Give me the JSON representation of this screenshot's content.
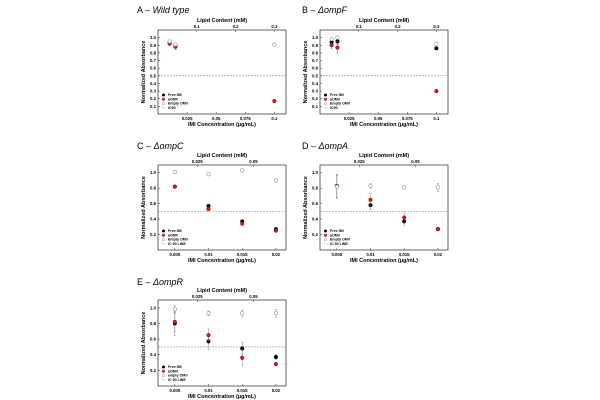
{
  "chart_data": [
    {
      "type": "scatter",
      "title": "A – Wild type",
      "title_prefix": "A – ",
      "title_name": "Wild type",
      "xlabel": "IMI Concentration (µg/mL)",
      "top_xlabel": "Lipid Content (mM)",
      "ylabel": "Normalized Absorbance",
      "xlim": [
        0,
        0.11
      ],
      "ylim": [
        0,
        1.1
      ],
      "x_ticks": [
        0.025,
        0.05,
        0.075,
        0.1
      ],
      "x_tick_labels": [
        "0.025",
        "0.05",
        "0.075",
        "0.1"
      ],
      "top_ticks": [
        0.1,
        0.2,
        0.3
      ],
      "top_tick_labels": [
        "0.1",
        "0.2",
        "0.3"
      ],
      "top_scale": 3,
      "y_ticks": [
        0.1,
        0.2,
        0.3,
        0.4,
        0.5,
        0.6,
        0.7,
        0.8,
        0.9,
        1.0
      ],
      "y_tick_labels": [
        "0.1",
        "0.2",
        "0.3",
        "0.4",
        "0.5",
        "0.6",
        "0.7",
        "0.8",
        "0.9",
        "1.0"
      ],
      "ic50": 0.5,
      "legend": [
        "Free IMI",
        "aOMV",
        "Empty OMV",
        "IC50"
      ],
      "series": [
        {
          "name": "Free IMI",
          "style": "black",
          "points": [
            [
              0.01,
              0.93,
              0.02
            ],
            [
              0.015,
              0.9,
              0.03
            ]
          ]
        },
        {
          "name": "aOMV",
          "style": "red",
          "points": [
            [
              0.01,
              0.92,
              0.02
            ],
            [
              0.015,
              0.88,
              0.04
            ],
            [
              0.1,
              0.17,
              0.01
            ]
          ]
        },
        {
          "name": "Empty OMV",
          "style": "open",
          "points": [
            [
              0.01,
              0.95,
              0.01
            ],
            [
              0.015,
              0.91,
              0.02
            ],
            [
              0.1,
              0.91,
              0.01
            ]
          ]
        }
      ]
    },
    {
      "type": "scatter",
      "title": "B – ΔompF",
      "title_prefix": "B – ",
      "title_name": "ΔompF",
      "xlabel": "IMI Concentration (µg/mL)",
      "top_xlabel": "Lipid Content (mM)",
      "ylabel": "Normalized Absorbance",
      "xlim": [
        0,
        0.11
      ],
      "ylim": [
        0,
        1.1
      ],
      "x_ticks": [
        0.025,
        0.05,
        0.075,
        0.1
      ],
      "x_tick_labels": [
        "0.025",
        "0.05",
        "0.075",
        "0.1"
      ],
      "top_ticks": [
        0.1,
        0.2,
        0.3
      ],
      "top_tick_labels": [
        "0.1",
        "0.2",
        "0.3"
      ],
      "top_scale": 3,
      "y_ticks": [
        0.1,
        0.2,
        0.3,
        0.4,
        0.5,
        0.6,
        0.7,
        0.8,
        0.9,
        1.0
      ],
      "y_tick_labels": [
        "0.1",
        "0.2",
        "0.3",
        "0.4",
        "0.5",
        "0.6",
        "0.7",
        "0.8",
        "0.9",
        "1.0"
      ],
      "ic50": 0.5,
      "legend": [
        "Free IMI",
        "aOMV",
        "Empty OMV",
        "IC50"
      ],
      "series": [
        {
          "name": "Free IMI",
          "style": "black",
          "points": [
            [
              0.01,
              0.94,
              0.03
            ],
            [
              0.015,
              0.95,
              0.04
            ],
            [
              0.1,
              0.86,
              0.02
            ]
          ]
        },
        {
          "name": "aOMV",
          "style": "red",
          "points": [
            [
              0.01,
              0.9,
              0.04
            ],
            [
              0.015,
              0.87,
              0.08
            ],
            [
              0.1,
              0.3,
              0.02
            ]
          ]
        },
        {
          "name": "Empty OMV",
          "style": "open",
          "points": [
            [
              0.01,
              0.98,
              0.02
            ],
            [
              0.015,
              1.0,
              0.02
            ],
            [
              0.1,
              0.92,
              0.02
            ]
          ]
        }
      ]
    },
    {
      "type": "scatter",
      "title": "C – ΔompC",
      "title_prefix": "C – ",
      "title_name": "ΔompC",
      "xlabel": "IMI Concentration (µg/mL)",
      "top_xlabel": "Lipid Content (mM)",
      "ylabel": "Normalized Absorbance",
      "xlim": [
        0.0025,
        0.0215
      ],
      "ylim": [
        0,
        1.1
      ],
      "x_ticks": [
        0.005,
        0.01,
        0.015,
        0.02
      ],
      "x_tick_labels": [
        "0.005",
        "0.01",
        "0.015",
        "0.02"
      ],
      "top_ticks": [
        0.025,
        0.05
      ],
      "top_tick_labels": [
        "0.025",
        "0.05"
      ],
      "top_scale": 3,
      "y_ticks": [
        0.2,
        0.4,
        0.6,
        0.8,
        1.0
      ],
      "y_tick_labels": [
        "0.2",
        "0.4",
        "0.6",
        "0.8",
        "1.0"
      ],
      "ic50": 0.5,
      "legend": [
        "Free IMI",
        "aOMV",
        "Empty OMV",
        "IC 50 LINE"
      ],
      "series": [
        {
          "name": "Free IMI",
          "style": "black",
          "points": [
            [
              0.005,
              0.82,
              0.02
            ],
            [
              0.01,
              0.57,
              0.02
            ],
            [
              0.015,
              0.37,
              0.02
            ],
            [
              0.02,
              0.27,
              0.02
            ]
          ]
        },
        {
          "name": "aOMV",
          "style": "red",
          "points": [
            [
              0.005,
              0.82,
              0.02
            ],
            [
              0.01,
              0.53,
              0.02
            ],
            [
              0.015,
              0.34,
              0.02
            ],
            [
              0.02,
              0.25,
              0.02
            ]
          ]
        },
        {
          "name": "Empty OMV",
          "style": "open",
          "points": [
            [
              0.005,
              1.01,
              0.02
            ],
            [
              0.01,
              0.98,
              0.02
            ],
            [
              0.015,
              1.03,
              0.02
            ],
            [
              0.02,
              0.9,
              0.02
            ]
          ]
        }
      ]
    },
    {
      "type": "scatter",
      "title": "D – ΔompA",
      "title_prefix": "D – ",
      "title_name": "ΔompA",
      "xlabel": "IMI Concentration (µg/mL)",
      "top_xlabel": "Lipid Content (mM)",
      "ylabel": "Normalized Absorbance",
      "xlim": [
        0.0025,
        0.0215
      ],
      "ylim": [
        0,
        1.1
      ],
      "x_ticks": [
        0.005,
        0.01,
        0.015,
        0.02
      ],
      "x_tick_labels": [
        "0.005",
        "0.01",
        "0.015",
        "0.02"
      ],
      "top_ticks": [
        0.025,
        0.05
      ],
      "top_tick_labels": [
        "0.025",
        "0.05"
      ],
      "top_scale": 3,
      "y_ticks": [
        0.2,
        0.4,
        0.6,
        0.8,
        1.0
      ],
      "y_tick_labels": [
        "0.2",
        "0.4",
        "0.6",
        "0.8",
        "1.0"
      ],
      "ic50": 0.5,
      "legend": [
        "Free IMI",
        "aOMV",
        "Empty OMV",
        "IC 50 LINE"
      ],
      "series": [
        {
          "name": "Free IMI",
          "style": "black",
          "points": [
            [
              0.005,
              0.83,
              0.15
            ],
            [
              0.01,
              0.58,
              0.06
            ],
            [
              0.015,
              0.37,
              0.05
            ],
            [
              0.02,
              0.27,
              0.02
            ]
          ]
        },
        {
          "name": "aOMV",
          "style": "red",
          "points": [
            [
              0.005,
              0.83,
              0.15
            ],
            [
              0.01,
              0.65,
              0.08
            ],
            [
              0.015,
              0.42,
              0.06
            ],
            [
              0.02,
              0.27,
              0.02
            ]
          ]
        },
        {
          "name": "Empty OMV",
          "style": "open",
          "points": [
            [
              0.005,
              0.82,
              0.15
            ],
            [
              0.01,
              0.83,
              0.03
            ],
            [
              0.015,
              0.81,
              0.02
            ],
            [
              0.02,
              0.81,
              0.05
            ]
          ]
        }
      ]
    },
    {
      "type": "scatter",
      "title": "E – ΔompR",
      "title_prefix": "E – ",
      "title_name": "ΔompR",
      "xlabel": "IMI Concentration (µg/mL)",
      "top_xlabel": "Lipid Content (mM)",
      "ylabel": "Normalized Absorbance",
      "xlim": [
        0.0025,
        0.0215
      ],
      "ylim": [
        0,
        1.1
      ],
      "x_ticks": [
        0.005,
        0.01,
        0.015,
        0.02
      ],
      "x_tick_labels": [
        "0.005",
        "0.01",
        "0.015",
        "0.02"
      ],
      "top_ticks": [
        0.025,
        0.05
      ],
      "top_tick_labels": [
        "0.025",
        "0.05"
      ],
      "top_scale": 3,
      "y_ticks": [
        0.2,
        0.4,
        0.6,
        0.8,
        1.0
      ],
      "y_tick_labels": [
        "0.2",
        "0.4",
        "0.6",
        "0.8",
        "1.0"
      ],
      "ic50": 0.5,
      "legend": [
        "Free IMI",
        "aOMV",
        "empty OMV",
        "IC 50 LINE"
      ],
      "series": [
        {
          "name": "Free IMI",
          "style": "black",
          "points": [
            [
              0.005,
              0.8,
              0.15
            ],
            [
              0.01,
              0.57,
              0.1
            ],
            [
              0.015,
              0.48,
              0.08
            ],
            [
              0.02,
              0.37,
              0.03
            ]
          ]
        },
        {
          "name": "aOMV",
          "style": "red",
          "points": [
            [
              0.005,
              0.82,
              0.12
            ],
            [
              0.01,
              0.65,
              0.08
            ],
            [
              0.015,
              0.36,
              0.1
            ],
            [
              0.02,
              0.28,
              0.02
            ]
          ]
        },
        {
          "name": "empty OMV",
          "style": "open",
          "points": [
            [
              0.005,
              0.98,
              0.05
            ],
            [
              0.01,
              0.93,
              0.03
            ],
            [
              0.015,
              0.93,
              0.04
            ],
            [
              0.02,
              0.93,
              0.05
            ]
          ]
        }
      ]
    }
  ]
}
